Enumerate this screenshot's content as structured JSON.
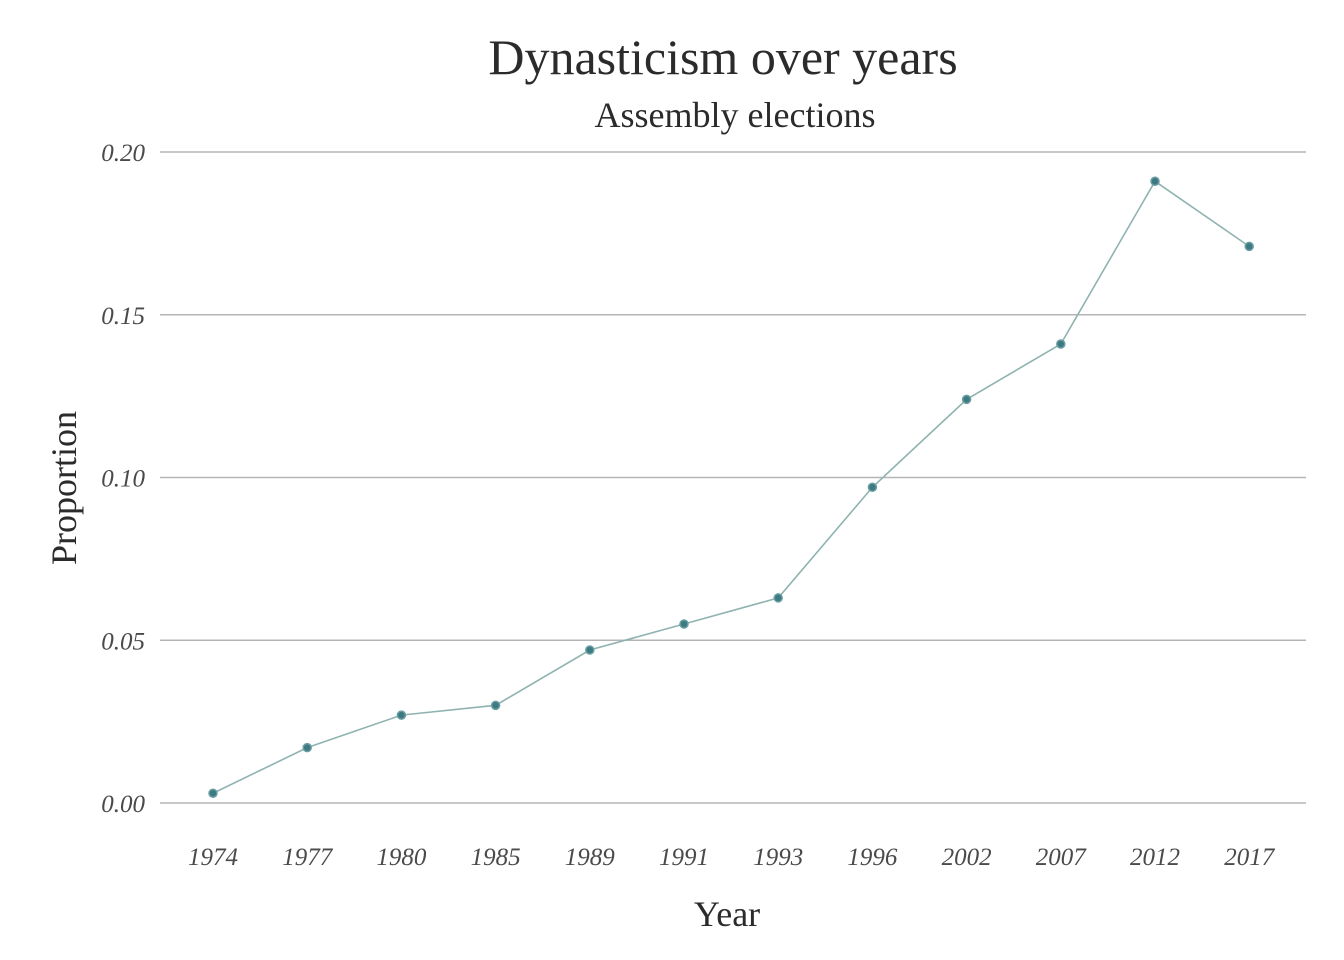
{
  "chart_data": {
    "type": "line",
    "title": "Dynasticism over years",
    "subtitle": "Assembly elections",
    "xlabel": "Year",
    "ylabel": "Proportion",
    "categories": [
      "1974",
      "1977",
      "1980",
      "1985",
      "1989",
      "1991",
      "1993",
      "1996",
      "2002",
      "2007",
      "2012",
      "2017"
    ],
    "values": [
      0.003,
      0.017,
      0.027,
      0.03,
      0.047,
      0.055,
      0.063,
      0.097,
      0.124,
      0.141,
      0.191,
      0.171
    ],
    "ylim": [
      0,
      0.2
    ],
    "yticks": [
      "0.00",
      "0.05",
      "0.10",
      "0.15",
      "0.20"
    ],
    "ytick_values": [
      0,
      0.05,
      0.1,
      0.15,
      0.2
    ],
    "grid": "horizontal",
    "legend": "none",
    "colors": {
      "line": "#8fb3b0",
      "point": "#3d7a82",
      "grid": "#b5b5b5"
    }
  }
}
